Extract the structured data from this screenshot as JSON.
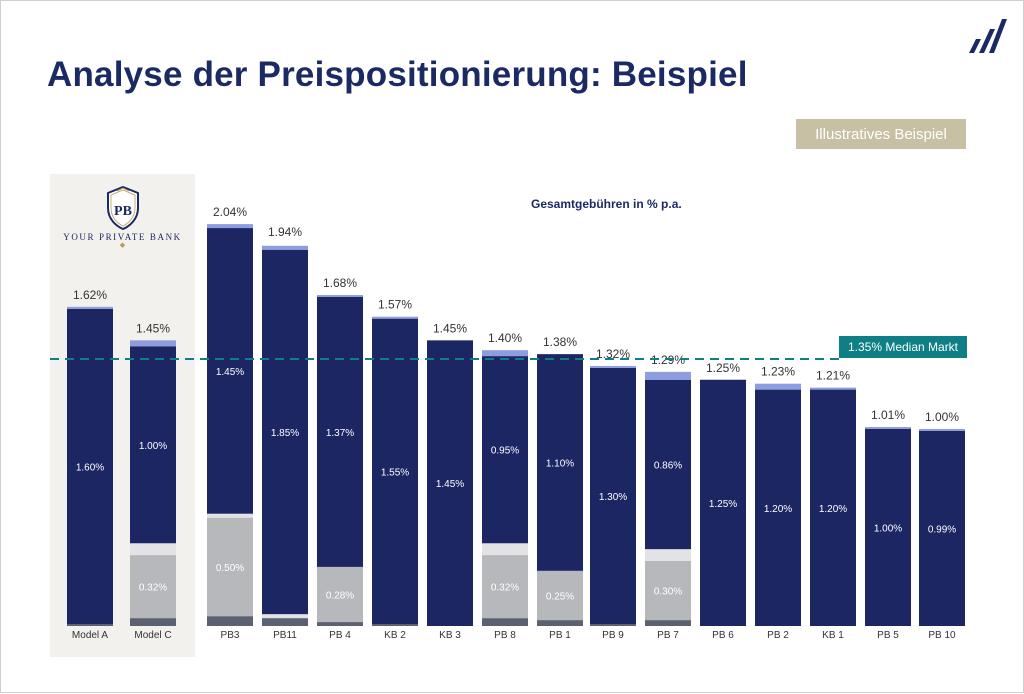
{
  "title": "Analyse der Preispositionierung: Beispiel",
  "badge": "Illustratives Beispiel",
  "bank_logo": {
    "monogram": "PB",
    "name": "YOUR PRIVATE BANK"
  },
  "chart_data": {
    "type": "bar",
    "title": "Gesamtgebühren in % p.a.",
    "categories": [
      "Model A",
      "Model C",
      "PB3",
      "PB11",
      "PB 4",
      "KB 2",
      "KB 3",
      "PB 8",
      "PB 1",
      "PB 9",
      "PB 7",
      "PB 6",
      "PB 2",
      "KB 1",
      "PB 5",
      "PB 10"
    ],
    "totals": [
      "1.62%",
      "1.45%",
      "2.04%",
      "1.94%",
      "1.68%",
      "1.57%",
      "1.45%",
      "1.40%",
      "1.38%",
      "1.32%",
      "1.29%",
      "1.25%",
      "1.23%",
      "1.21%",
      "1.01%",
      "1.00%"
    ],
    "total_values": [
      1.62,
      1.45,
      2.04,
      1.94,
      1.68,
      1.57,
      1.45,
      1.4,
      1.38,
      1.32,
      1.29,
      1.25,
      1.23,
      1.21,
      1.01,
      1.0
    ],
    "series": [
      {
        "values": [
          0.01,
          0.04,
          0.05,
          0.04,
          0.02,
          0.01,
          0.0,
          0.04,
          0.03,
          0.01,
          0.03,
          0.0,
          0.0,
          0.0,
          0.0,
          0.0
        ],
        "color": "#5b6170"
      },
      {
        "values": [
          0.0,
          0.32,
          0.5,
          0.0,
          0.28,
          0.0,
          0.0,
          0.32,
          0.25,
          0.0,
          0.3,
          0.0,
          0.0,
          0.0,
          0.0,
          0.0
        ],
        "labels": [
          "",
          "0.32%",
          "0.50%",
          "",
          "0.28%",
          "",
          "",
          "0.32%",
          "0.25%",
          "",
          "0.30%",
          "",
          "",
          "",
          "",
          ""
        ],
        "color": "#b7b8bc"
      },
      {
        "values": [
          0.0,
          0.06,
          0.02,
          0.02,
          0.0,
          0.0,
          0.0,
          0.06,
          0.0,
          0.0,
          0.06,
          0.0,
          0.0,
          0.0,
          0.0,
          0.0
        ],
        "color": "#e3e3e5"
      },
      {
        "values": [
          1.6,
          1.0,
          1.45,
          1.85,
          1.37,
          1.55,
          1.45,
          0.95,
          1.1,
          1.3,
          0.86,
          1.25,
          1.2,
          1.2,
          1.0,
          0.99
        ],
        "labels": [
          "1.60%",
          "1.00%",
          "1.45%",
          "1.85%",
          "1.37%",
          "1.55%",
          "1.45%",
          "0.95%",
          "1.10%",
          "1.30%",
          "0.86%",
          "1.25%",
          "1.20%",
          "1.20%",
          "1.00%",
          "0.99%"
        ],
        "color": "#1b2663"
      },
      {
        "values": [
          0.01,
          0.03,
          0.02,
          0.02,
          0.01,
          0.01,
          0.0,
          0.03,
          0.0,
          0.01,
          0.04,
          0.0,
          0.03,
          0.01,
          0.01,
          0.01
        ],
        "color": "#8e9ce0"
      }
    ],
    "median": {
      "value": 1.35,
      "label": "1.35% Median Markt",
      "color": "#0f7f86"
    },
    "highlight_categories": [
      "Model A",
      "Model C"
    ],
    "ylim": [
      0,
      2.1
    ],
    "grid": false
  }
}
